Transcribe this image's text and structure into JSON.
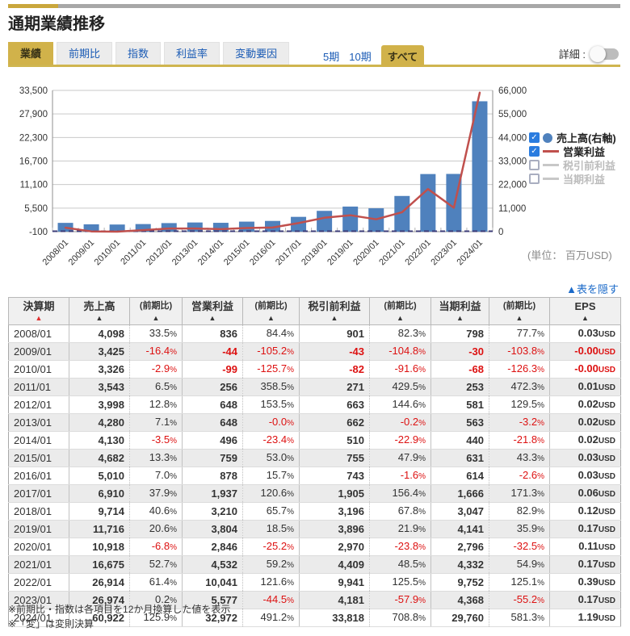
{
  "page": {
    "title": "通期業績推移",
    "detail_label": "詳細 :",
    "unit_note": "(単位： 百万USD)",
    "hide_table_link": "▲表を隠す",
    "notes": [
      "※前期比・指数は各項目を12か月換算した値を表示",
      "※「変」は変則決算"
    ]
  },
  "colors": {
    "gold": "#d1b24a",
    "tab_link_blue": "#1a5bb5",
    "link_blue": "#1b6ac9",
    "bar_blue": "#4f81bd",
    "line_red": "#c0504d",
    "inactive_gray": "#c8c8c8",
    "negative_red": "#dd1111",
    "zero_line_navy": "#3c3c78"
  },
  "tabs": [
    {
      "label": "業績",
      "active": true
    },
    {
      "label": "前期比",
      "active": false
    },
    {
      "label": "指数",
      "active": false
    },
    {
      "label": "利益率",
      "active": false
    },
    {
      "label": "変動要因",
      "active": false
    }
  ],
  "period_options": [
    {
      "label": "5期",
      "active": false
    },
    {
      "label": "10期",
      "active": false
    },
    {
      "label": "すべて",
      "active": true
    }
  ],
  "legend": [
    {
      "label": "売上高(右軸)",
      "checked": true,
      "marker": "circle",
      "color": "#4f81bd"
    },
    {
      "label": "営業利益",
      "checked": true,
      "marker": "line",
      "color": "#c0504d"
    },
    {
      "label": "税引前利益",
      "checked": false,
      "marker": "line",
      "color": "#c8c8c8"
    },
    {
      "label": "当期利益",
      "checked": false,
      "marker": "line",
      "color": "#c8c8c8"
    }
  ],
  "chart_data": {
    "type": "bar",
    "categories": [
      "2008/01",
      "2009/01",
      "2010/01",
      "2011/01",
      "2012/01",
      "2013/01",
      "2014/01",
      "2015/01",
      "2016/01",
      "2017/01",
      "2018/01",
      "2019/01",
      "2020/01",
      "2021/01",
      "2022/01",
      "2023/01",
      "2024/01"
    ],
    "series": [
      {
        "name": "売上高(右軸)",
        "type": "bar",
        "axis": "right",
        "color": "#4f81bd",
        "values": [
          4098,
          3425,
          3326,
          3543,
          3998,
          4280,
          4130,
          4682,
          5010,
          6910,
          9714,
          11716,
          10918,
          16675,
          26914,
          26974,
          60922
        ]
      },
      {
        "name": "営業利益",
        "type": "line",
        "axis": "left",
        "color": "#c0504d",
        "values": [
          836,
          -44,
          -99,
          256,
          648,
          648,
          496,
          759,
          878,
          1937,
          3210,
          3804,
          2846,
          4532,
          10041,
          5577,
          32972
        ]
      }
    ],
    "left_axis": {
      "min": -100,
      "max": 33500,
      "tick_labels_top_to_bottom": [
        "33,500",
        "27,900",
        "22,300",
        "16,700",
        "11,100",
        "5,500",
        "-100"
      ]
    },
    "right_axis": {
      "min": 0,
      "max": 66000,
      "tick_labels_top_to_bottom": [
        "66,000",
        "55,000",
        "44,000",
        "33,000",
        "22,000",
        "11,000",
        "0"
      ]
    },
    "zero_line_value": 0,
    "grid": true,
    "legend_position": "right",
    "title": "",
    "xlabel": "",
    "ylabel": ""
  },
  "table": {
    "headers": [
      {
        "label": "決算期",
        "small": false,
        "sorted": true
      },
      {
        "label": "売上高",
        "small": false,
        "sorted": false
      },
      {
        "label": "(前期比)",
        "small": true,
        "sorted": false
      },
      {
        "label": "営業利益",
        "small": false,
        "sorted": false
      },
      {
        "label": "(前期比)",
        "small": true,
        "sorted": false
      },
      {
        "label": "税引前利益",
        "small": false,
        "sorted": false
      },
      {
        "label": "(前期比)",
        "small": true,
        "sorted": false
      },
      {
        "label": "当期利益",
        "small": false,
        "sorted": false
      },
      {
        "label": "(前期比)",
        "small": true,
        "sorted": false
      },
      {
        "label": "EPS",
        "small": false,
        "sorted": false
      }
    ],
    "rows": [
      [
        "2008/01",
        "4,098",
        "33.5%",
        "836",
        "84.4%",
        "901",
        "82.3%",
        "798",
        "77.7%",
        "0.03USD"
      ],
      [
        "2009/01",
        "3,425",
        "-16.4%",
        "-44",
        "-105.2%",
        "-43",
        "-104.8%",
        "-30",
        "-103.8%",
        "-0.00USD"
      ],
      [
        "2010/01",
        "3,326",
        "-2.9%",
        "-99",
        "-125.7%",
        "-82",
        "-91.6%",
        "-68",
        "-126.3%",
        "-0.00USD"
      ],
      [
        "2011/01",
        "3,543",
        "6.5%",
        "256",
        "358.5%",
        "271",
        "429.5%",
        "253",
        "472.3%",
        "0.01USD"
      ],
      [
        "2012/01",
        "3,998",
        "12.8%",
        "648",
        "153.5%",
        "663",
        "144.6%",
        "581",
        "129.5%",
        "0.02USD"
      ],
      [
        "2013/01",
        "4,280",
        "7.1%",
        "648",
        "-0.0%",
        "662",
        "-0.2%",
        "563",
        "-3.2%",
        "0.02USD"
      ],
      [
        "2014/01",
        "4,130",
        "-3.5%",
        "496",
        "-23.4%",
        "510",
        "-22.9%",
        "440",
        "-21.8%",
        "0.02USD"
      ],
      [
        "2015/01",
        "4,682",
        "13.3%",
        "759",
        "53.0%",
        "755",
        "47.9%",
        "631",
        "43.3%",
        "0.03USD"
      ],
      [
        "2016/01",
        "5,010",
        "7.0%",
        "878",
        "15.7%",
        "743",
        "-1.6%",
        "614",
        "-2.6%",
        "0.03USD"
      ],
      [
        "2017/01",
        "6,910",
        "37.9%",
        "1,937",
        "120.6%",
        "1,905",
        "156.4%",
        "1,666",
        "171.3%",
        "0.06USD"
      ],
      [
        "2018/01",
        "9,714",
        "40.6%",
        "3,210",
        "65.7%",
        "3,196",
        "67.8%",
        "3,047",
        "82.9%",
        "0.12USD"
      ],
      [
        "2019/01",
        "11,716",
        "20.6%",
        "3,804",
        "18.5%",
        "3,896",
        "21.9%",
        "4,141",
        "35.9%",
        "0.17USD"
      ],
      [
        "2020/01",
        "10,918",
        "-6.8%",
        "2,846",
        "-25.2%",
        "2,970",
        "-23.8%",
        "2,796",
        "-32.5%",
        "0.11USD"
      ],
      [
        "2021/01",
        "16,675",
        "52.7%",
        "4,532",
        "59.2%",
        "4,409",
        "48.5%",
        "4,332",
        "54.9%",
        "0.17USD"
      ],
      [
        "2022/01",
        "26,914",
        "61.4%",
        "10,041",
        "121.6%",
        "9,941",
        "125.5%",
        "9,752",
        "125.1%",
        "0.39USD"
      ],
      [
        "2023/01",
        "26,974",
        "0.2%",
        "5,577",
        "-44.5%",
        "4,181",
        "-57.9%",
        "4,368",
        "-55.2%",
        "0.17USD"
      ],
      [
        "2024/01",
        "60,922",
        "125.9%",
        "32,972",
        "491.2%",
        "33,818",
        "708.8%",
        "29,760",
        "581.3%",
        "1.19USD"
      ]
    ]
  }
}
